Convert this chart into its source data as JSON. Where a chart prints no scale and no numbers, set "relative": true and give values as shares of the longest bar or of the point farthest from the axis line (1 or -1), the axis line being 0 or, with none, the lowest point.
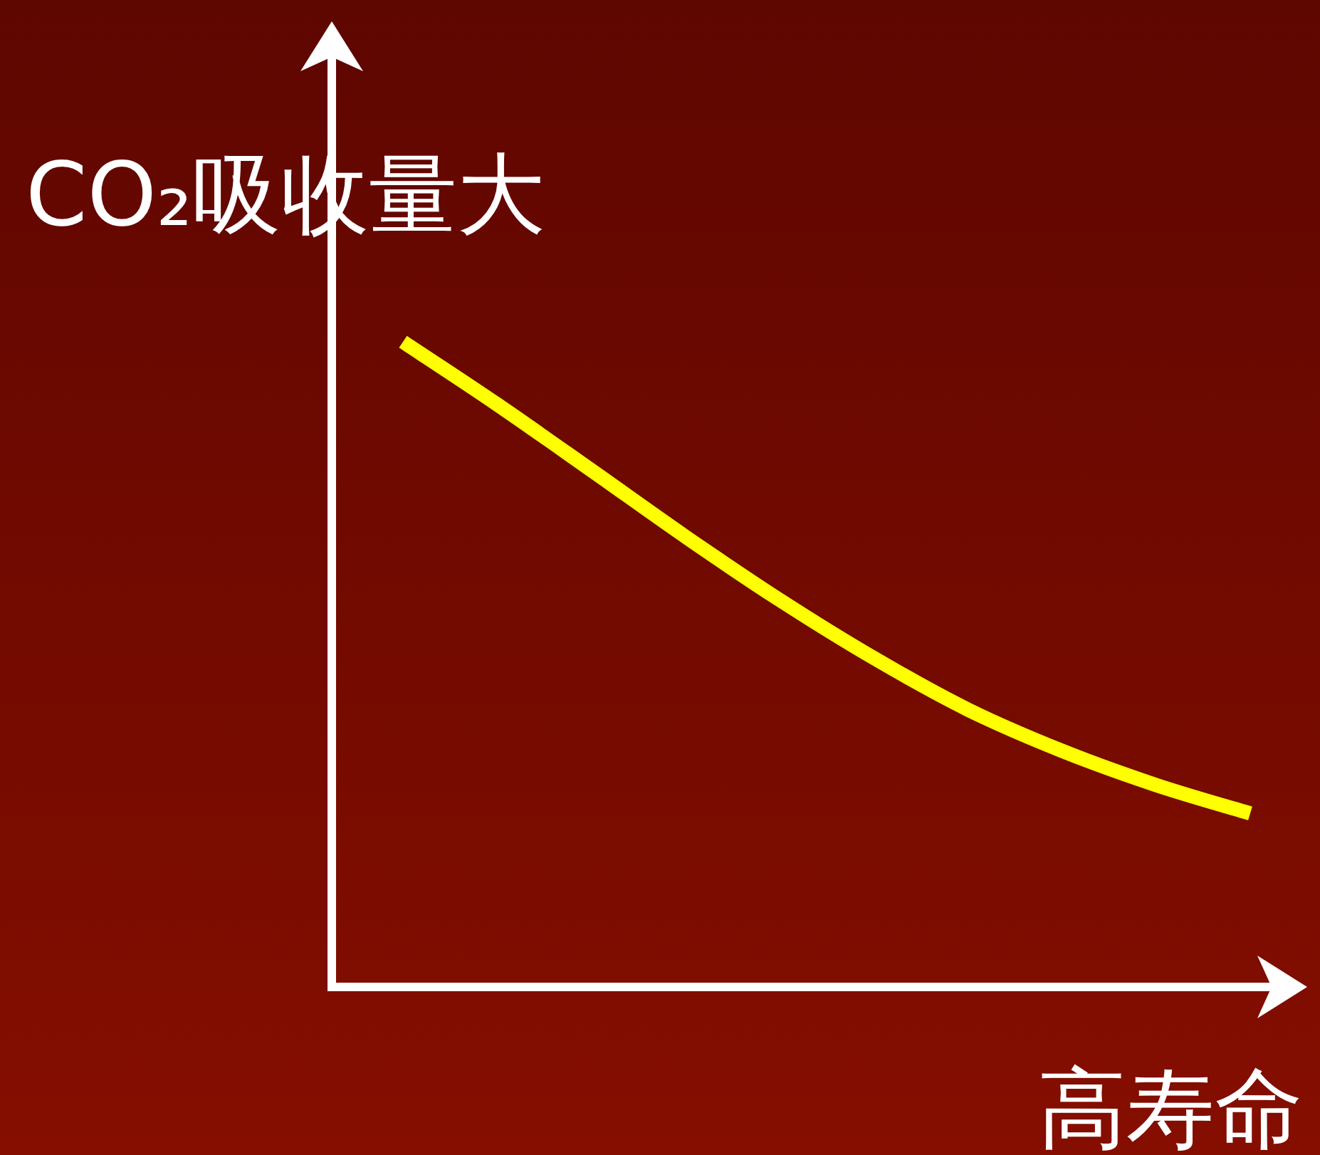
{
  "chart_data": {
    "type": "line",
    "relative": true,
    "ylabel": "CO₂吸收量大",
    "xlabel": "高寿命",
    "categories": [
      null,
      null,
      null,
      null,
      null,
      null,
      null,
      null,
      null,
      null
    ],
    "series": [
      {
        "color": "#ffff00",
        "values": [
          1,
          0.903,
          0.801,
          0.698,
          0.6,
          0.51,
          0.43,
          0.366,
          0.313,
          0.269
        ]
      }
    ]
  }
}
